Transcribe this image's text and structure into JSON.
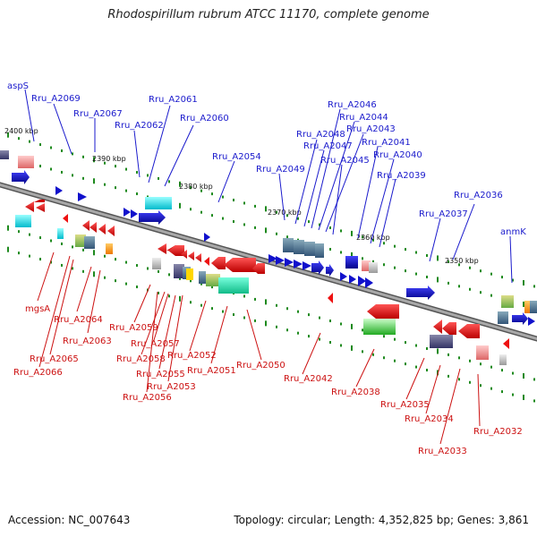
{
  "title": "Rhodospirillum rubrum ATCC 11170, complete genome",
  "footer": {
    "accession": "Accession: NC_007643",
    "topology": "Topology: circular; Length: 4,352,825 bp; Genes: 3,861"
  },
  "colors": {
    "backbone": "#8a8a8a",
    "top_label": "#1a1acc",
    "bottom_label": "#cc1111",
    "tick": "#1e8a1e",
    "scale_text": "#111111"
  },
  "scale_labels": [
    "2400 kbp",
    "2390 kbp",
    "2380 kbp",
    "2370 kbp",
    "2360 kbp",
    "2350 kbp"
  ],
  "top_genes": [
    "aspS",
    "Rru_A2069",
    "Rru_A2067",
    "Rru_A2062",
    "Rru_A2061",
    "Rru_A2060",
    "Rru_A2054",
    "Rru_A2049",
    "Rru_A2048",
    "Rru_A2047",
    "Rru_A2046",
    "Rru_A2044",
    "Rru_A2043",
    "Rru_A2045",
    "Rru_A2041",
    "Rru_A2040",
    "Rru_A2039",
    "Rru_A2037",
    "Rru_A2036",
    "anmK"
  ],
  "bottom_genes": [
    "mgsA",
    "Rru_A2064",
    "Rru_A2063",
    "Rru_A2065",
    "Rru_A2066",
    "Rru_A2059",
    "Rru_A2057",
    "Rru_A2058",
    "Rru_A2055",
    "Rru_A2053",
    "Rru_A2056",
    "Rru_A2052",
    "Rru_A2051",
    "Rru_A2050",
    "Rru_A2042",
    "Rru_A2038",
    "Rru_A2035",
    "Rru_A2034",
    "Rru_A2033",
    "Rru_A2032"
  ]
}
